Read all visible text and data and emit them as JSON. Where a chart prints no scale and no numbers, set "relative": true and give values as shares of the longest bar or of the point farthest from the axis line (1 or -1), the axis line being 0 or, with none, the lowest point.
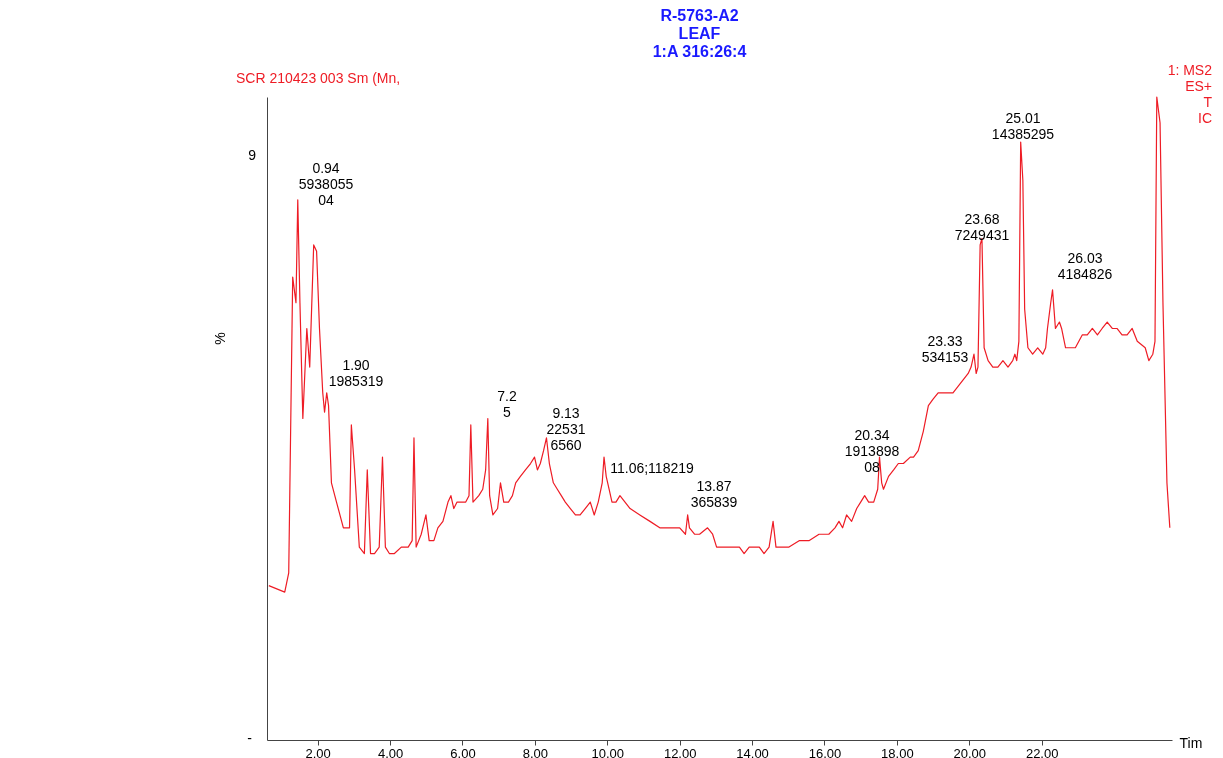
{
  "chart_data": {
    "type": "line",
    "title": "R-5763-A2",
    "subtitle": "LEAF\n1:A 316:26:4",
    "xlabel": "Tim",
    "ylabel": "%",
    "relative": true,
    "annotations": [
      "SCR  210423  003 Sm (Mn,",
      "1: MS2\nES+\nT\nIC",
      "9",
      "-",
      "0.94\n5938055\n04",
      "1.90\n1985319",
      "7.2\n5",
      "9.13\n22531\n6560",
      "11.06;118219",
      "13.87\n365839",
      "20.34\n1913898\n08",
      "23.33\n534153",
      "23.68\n7249431",
      "25.01\n14385295",
      "26.03\n4184826"
    ],
    "xlim": [
      0.6,
      25.6
    ],
    "xticks": [
      {
        "value": 2,
        "label": "2.00"
      },
      {
        "value": 4,
        "label": "4.00"
      },
      {
        "value": 6,
        "label": "6.00"
      },
      {
        "value": 8,
        "label": "8.00"
      },
      {
        "value": 10,
        "label": "10.00"
      },
      {
        "value": 12,
        "label": "12.00"
      },
      {
        "value": 14,
        "label": "14.00"
      },
      {
        "value": 16,
        "label": "16.00"
      },
      {
        "value": 18,
        "label": "18.00"
      },
      {
        "value": 20,
        "label": "20.00"
      },
      {
        "value": 22,
        "label": "22.00"
      }
    ],
    "x": [
      0.65,
      1.09,
      1.2,
      1.31,
      1.4,
      1.45,
      1.51,
      1.59,
      1.7,
      1.78,
      1.89,
      1.97,
      2.05,
      2.14,
      2.19,
      2.25,
      2.3,
      2.38,
      2.52,
      2.71,
      2.88,
      2.93,
      3.02,
      3.15,
      3.29,
      3.37,
      3.46,
      3.57,
      3.7,
      3.79,
      3.87,
      3.98,
      4.12,
      4.31,
      4.5,
      4.61,
      4.66,
      4.72,
      4.86,
      4.99,
      5.08,
      5.21,
      5.32,
      5.46,
      5.6,
      5.68,
      5.76,
      5.85,
      5.96,
      6.09,
      6.18,
      6.23,
      6.29,
      6.45,
      6.56,
      6.64,
      6.7,
      6.75,
      6.84,
      6.97,
      7.05,
      7.14,
      7.27,
      7.38,
      7.47,
      7.6,
      7.74,
      7.88,
      7.99,
      8.07,
      8.15,
      8.24,
      8.32,
      8.4,
      8.51,
      8.62,
      8.73,
      8.84,
      8.98,
      9.12,
      9.25,
      9.39,
      9.53,
      9.64,
      9.75,
      9.86,
      9.91,
      9.97,
      10.05,
      10.13,
      10.24,
      10.35,
      10.49,
      10.63,
      10.9,
      11.18,
      11.45,
      11.73,
      12.0,
      12.16,
      12.22,
      12.27,
      12.41,
      12.55,
      12.77,
      12.91,
      13.02,
      13.15,
      13.32,
      13.43,
      13.54,
      13.65,
      13.78,
      13.92,
      14.06,
      14.2,
      14.33,
      14.47,
      14.58,
      14.66,
      14.8,
      15.02,
      15.3,
      15.57,
      15.85,
      16.12,
      16.29,
      16.4,
      16.5,
      16.61,
      16.75,
      16.89,
      17.0,
      17.11,
      17.22,
      17.36,
      17.47,
      17.52,
      17.58,
      17.63,
      17.77,
      17.91,
      18.04,
      18.18,
      18.37,
      18.46,
      18.59,
      18.73,
      18.87,
      19.0,
      19.14,
      19.36,
      19.55,
      19.69,
      19.83,
      19.97,
      20.05,
      20.13,
      20.19,
      20.24,
      20.3,
      20.35,
      20.41,
      20.52,
      20.65,
      20.79,
      20.93,
      21.07,
      21.2,
      21.26,
      21.31,
      21.37,
      21.42,
      21.48,
      21.53,
      21.62,
      21.75,
      21.89,
      22.03,
      22.11,
      22.16,
      22.25,
      22.3,
      22.38,
      22.49,
      22.55,
      22.66,
      22.79,
      22.93,
      23.12,
      23.26,
      23.4,
      23.54,
      23.67,
      23.81,
      23.95,
      24.08,
      24.22,
      24.36,
      24.5,
      24.64,
      24.86,
      24.96,
      25.07,
      25.13,
      25.18,
      25.27,
      25.35,
      25.46,
      25.54
    ],
    "series": [
      {
        "color": "#ee1c25",
        "values": [
          0.24,
          0.23,
          0.26,
          0.72,
          0.68,
          0.84,
          0.68,
          0.5,
          0.64,
          0.58,
          0.77,
          0.76,
          0.64,
          0.54,
          0.51,
          0.54,
          0.52,
          0.4,
          0.37,
          0.33,
          0.33,
          0.49,
          0.42,
          0.3,
          0.29,
          0.42,
          0.29,
          0.29,
          0.3,
          0.44,
          0.3,
          0.29,
          0.29,
          0.3,
          0.3,
          0.31,
          0.47,
          0.3,
          0.32,
          0.35,
          0.31,
          0.31,
          0.33,
          0.34,
          0.37,
          0.38,
          0.36,
          0.37,
          0.37,
          0.37,
          0.38,
          0.49,
          0.37,
          0.38,
          0.39,
          0.42,
          0.5,
          0.38,
          0.35,
          0.36,
          0.4,
          0.37,
          0.37,
          0.38,
          0.4,
          0.41,
          0.42,
          0.43,
          0.44,
          0.42,
          0.43,
          0.45,
          0.47,
          0.43,
          0.4,
          0.39,
          0.38,
          0.37,
          0.36,
          0.35,
          0.35,
          0.36,
          0.37,
          0.35,
          0.37,
          0.4,
          0.44,
          0.41,
          0.39,
          0.37,
          0.37,
          0.38,
          0.37,
          0.36,
          0.35,
          0.34,
          0.33,
          0.33,
          0.33,
          0.32,
          0.35,
          0.33,
          0.32,
          0.32,
          0.33,
          0.32,
          0.3,
          0.3,
          0.3,
          0.3,
          0.3,
          0.3,
          0.29,
          0.3,
          0.3,
          0.3,
          0.29,
          0.3,
          0.34,
          0.3,
          0.3,
          0.3,
          0.31,
          0.31,
          0.32,
          0.32,
          0.33,
          0.34,
          0.33,
          0.35,
          0.34,
          0.36,
          0.37,
          0.38,
          0.37,
          0.37,
          0.39,
          0.44,
          0.4,
          0.39,
          0.41,
          0.42,
          0.43,
          0.43,
          0.44,
          0.44,
          0.45,
          0.48,
          0.52,
          0.53,
          0.54,
          0.54,
          0.54,
          0.55,
          0.56,
          0.57,
          0.58,
          0.6,
          0.57,
          0.58,
          0.77,
          0.78,
          0.61,
          0.59,
          0.58,
          0.58,
          0.59,
          0.58,
          0.59,
          0.6,
          0.59,
          0.62,
          0.93,
          0.87,
          0.67,
          0.61,
          0.6,
          0.61,
          0.6,
          0.61,
          0.64,
          0.68,
          0.7,
          0.64,
          0.65,
          0.64,
          0.61,
          0.61,
          0.61,
          0.63,
          0.63,
          0.64,
          0.63,
          0.64,
          0.65,
          0.64,
          0.64,
          0.63,
          0.63,
          0.64,
          0.62,
          0.61,
          0.59,
          0.6,
          0.62,
          1,
          0.96,
          0.68,
          0.4,
          0.33
        ]
      }
    ]
  }
}
